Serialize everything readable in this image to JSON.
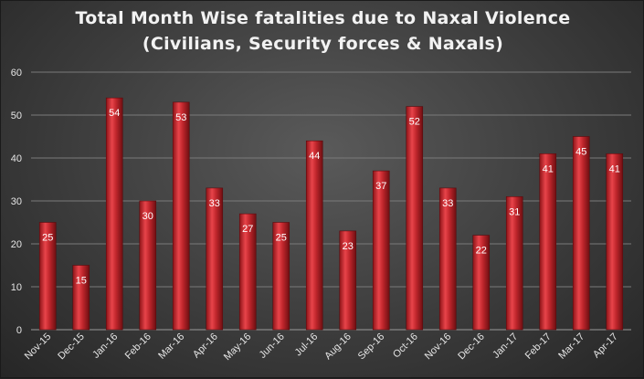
{
  "chart_data": {
    "type": "bar",
    "title": "Total Month Wise fatalities due to Naxal Violence",
    "subtitle": "(Civilians, Security forces & Naxals)",
    "xlabel": "",
    "ylabel": "",
    "ylim": [
      0,
      60
    ],
    "yticks": [
      0,
      10,
      20,
      30,
      40,
      50,
      60
    ],
    "grid": true,
    "categories": [
      "Nov-15",
      "Dec-15",
      "Jan-16",
      "Feb-16",
      "Mar-16",
      "Apr-16",
      "May-16",
      "Jun-16",
      "Jul-16",
      "Aug-16",
      "Sep-16",
      "Oct-16",
      "Nov-16",
      "Dec-16",
      "Jan-17",
      "Feb-17",
      "Mar-17",
      "Apr-17"
    ],
    "values": [
      25,
      15,
      54,
      30,
      53,
      33,
      27,
      25,
      44,
      23,
      37,
      52,
      33,
      22,
      31,
      41,
      45,
      41
    ],
    "bar_color": "#c0262c"
  }
}
